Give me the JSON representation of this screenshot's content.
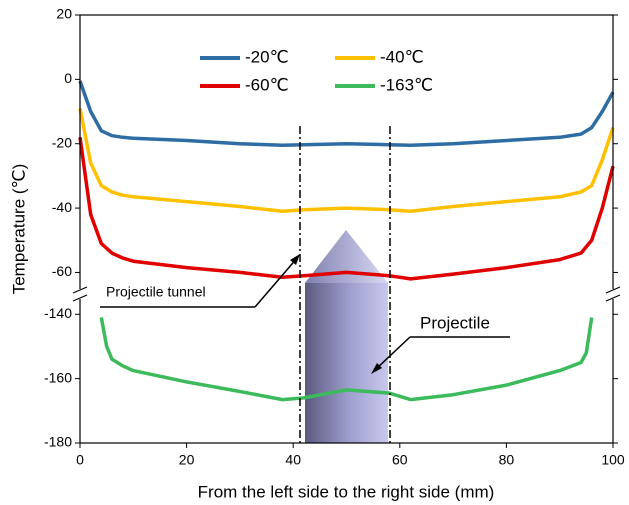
{
  "chart_data": {
    "type": "line",
    "x_label": "From the left side to the right side (mm)",
    "y_label": "Temperature (℃)",
    "xlim": [
      0,
      100
    ],
    "xticks": [
      0,
      20,
      40,
      60,
      80,
      100
    ],
    "ylim": [
      -180,
      20
    ],
    "y_break": [
      -134,
      -67
    ],
    "yticks": [
      20,
      0,
      -20,
      -40,
      -60,
      -140,
      -160,
      -180
    ],
    "annotations": [
      "Projectile tunnel",
      "Projectile"
    ],
    "series": [
      {
        "name": "-20℃",
        "color": "#2e6da4",
        "x": [
          0,
          2,
          4,
          6,
          8,
          10,
          20,
          30,
          38,
          42,
          50,
          58,
          62,
          70,
          80,
          90,
          94,
          96,
          98,
          100
        ],
        "values": [
          -0.5,
          -10,
          -16,
          -17.5,
          -18,
          -18.3,
          -19,
          -20,
          -20.5,
          -20.3,
          -20,
          -20.3,
          -20.5,
          -20,
          -19,
          -18,
          -17,
          -15,
          -10,
          -4
        ]
      },
      {
        "name": "-40℃",
        "color": "#ffc000",
        "x": [
          0,
          2,
          4,
          6,
          8,
          10,
          20,
          30,
          38,
          42,
          50,
          58,
          62,
          70,
          80,
          90,
          94,
          96,
          98,
          100
        ],
        "values": [
          -9,
          -26,
          -33,
          -35,
          -36,
          -36.5,
          -38,
          -39.5,
          -41,
          -40.5,
          -40,
          -40.5,
          -41,
          -39.5,
          -38,
          -36.5,
          -35,
          -33,
          -25,
          -15
        ]
      },
      {
        "name": "-60℃",
        "color": "#e00000",
        "x": [
          0,
          2,
          4,
          6,
          8,
          10,
          20,
          30,
          38,
          42,
          50,
          58,
          62,
          70,
          80,
          90,
          94,
          96,
          98,
          100
        ],
        "values": [
          -18,
          -42,
          -51,
          -54,
          -55.5,
          -56.5,
          -58.5,
          -60,
          -61.5,
          -61,
          -60,
          -61,
          -62,
          -60.5,
          -58.5,
          -56,
          -54,
          -50,
          -40,
          -27
        ]
      },
      {
        "name": "-163℃",
        "color": "#3cba5c",
        "x": [
          4,
          5,
          6,
          8,
          10,
          20,
          30,
          38,
          42,
          50,
          58,
          62,
          70,
          80,
          90,
          94,
          95,
          96
        ],
        "values": [
          -141,
          -150,
          -154,
          -156,
          -157.5,
          -161,
          -164,
          -166.5,
          -166,
          -163.5,
          -164.5,
          -166.5,
          -165,
          -162,
          -157.5,
          -155,
          -152,
          -141
        ]
      }
    ]
  }
}
